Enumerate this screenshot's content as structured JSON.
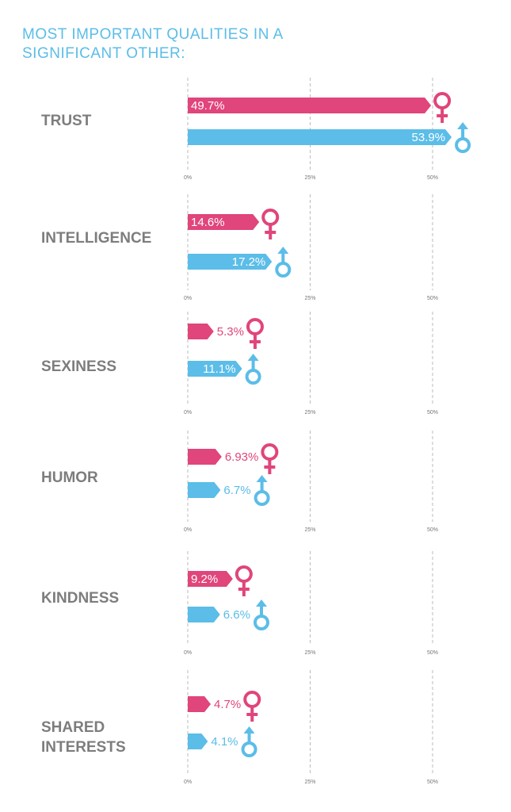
{
  "title": "MOST IMPORTANT QUALITIES IN A SIGNIFICANT OTHER:",
  "chart_data": [
    {
      "type": "bar",
      "orientation": "horizontal",
      "categories": [
        "TRUST"
      ],
      "grid": true,
      "series": [
        {
          "color": "#e0457b",
          "values": [
            49.7
          ],
          "value_labels": [
            "49.7%"
          ]
        },
        {
          "color": "#5bbde8",
          "values": [
            53.9
          ],
          "value_labels": [
            "53.9%"
          ]
        }
      ],
      "xlim": [
        0,
        55
      ],
      "xticks": [
        {
          "value": 0,
          "label": "0%"
        },
        {
          "value": 25,
          "label": "25%"
        },
        {
          "value": 50,
          "label": "50%"
        }
      ]
    },
    {
      "type": "bar",
      "orientation": "horizontal",
      "categories": [
        "INTELLIGENCE"
      ],
      "grid": true,
      "series": [
        {
          "color": "#e0457b",
          "values": [
            14.6
          ],
          "value_labels": [
            "14.6%"
          ]
        },
        {
          "color": "#5bbde8",
          "values": [
            17.2
          ],
          "value_labels": [
            "17.2%"
          ]
        }
      ],
      "xlim": [
        0,
        55
      ],
      "xticks": [
        {
          "value": 0,
          "label": "0%"
        },
        {
          "value": 25,
          "label": "25%"
        },
        {
          "value": 50,
          "label": "50%"
        }
      ]
    },
    {
      "type": "bar",
      "orientation": "horizontal",
      "categories": [
        "SEXINESS"
      ],
      "grid": true,
      "series": [
        {
          "color": "#e0457b",
          "values": [
            5.3
          ],
          "value_labels": [
            "5.3%"
          ]
        },
        {
          "color": "#5bbde8",
          "values": [
            11.1
          ],
          "value_labels": [
            "11.1%"
          ]
        }
      ],
      "xlim": [
        0,
        55
      ],
      "xticks": [
        {
          "value": 0,
          "label": "0%"
        },
        {
          "value": 25,
          "label": "25%"
        },
        {
          "value": 50,
          "label": "50%"
        }
      ]
    },
    {
      "type": "bar",
      "orientation": "horizontal",
      "categories": [
        "HUMOR"
      ],
      "grid": true,
      "series": [
        {
          "color": "#e0457b",
          "values": [
            6.93
          ],
          "value_labels": [
            "6.93%"
          ]
        },
        {
          "color": "#5bbde8",
          "values": [
            6.7
          ],
          "value_labels": [
            "6.7%"
          ]
        }
      ],
      "xlim": [
        0,
        55
      ],
      "xticks": [
        {
          "value": 0,
          "label": "0%"
        },
        {
          "value": 25,
          "label": "25%"
        },
        {
          "value": 50,
          "label": "50%"
        }
      ]
    },
    {
      "type": "bar",
      "orientation": "horizontal",
      "categories": [
        "KINDNESS"
      ],
      "grid": true,
      "series": [
        {
          "color": "#e0457b",
          "values": [
            9.2
          ],
          "value_labels": [
            "9.2%"
          ]
        },
        {
          "color": "#5bbde8",
          "values": [
            6.6
          ],
          "value_labels": [
            "6.6%"
          ]
        }
      ],
      "xlim": [
        0,
        55
      ],
      "xticks": [
        {
          "value": 0,
          "label": "0%"
        },
        {
          "value": 25,
          "label": "25%"
        },
        {
          "value": 50,
          "label": "50%"
        }
      ]
    },
    {
      "type": "bar",
      "orientation": "horizontal",
      "categories": [
        "SHARED INTERESTS"
      ],
      "grid": true,
      "series": [
        {
          "color": "#e0457b",
          "values": [
            4.7
          ],
          "value_labels": [
            "4.7%"
          ]
        },
        {
          "color": "#5bbde8",
          "values": [
            4.1
          ],
          "value_labels": [
            "4.1%"
          ]
        }
      ],
      "xlim": [
        0,
        55
      ],
      "xticks": [
        {
          "value": 0,
          "label": "0%"
        },
        {
          "value": 25,
          "label": "25%"
        },
        {
          "value": 50,
          "label": "50%"
        }
      ]
    }
  ]
}
